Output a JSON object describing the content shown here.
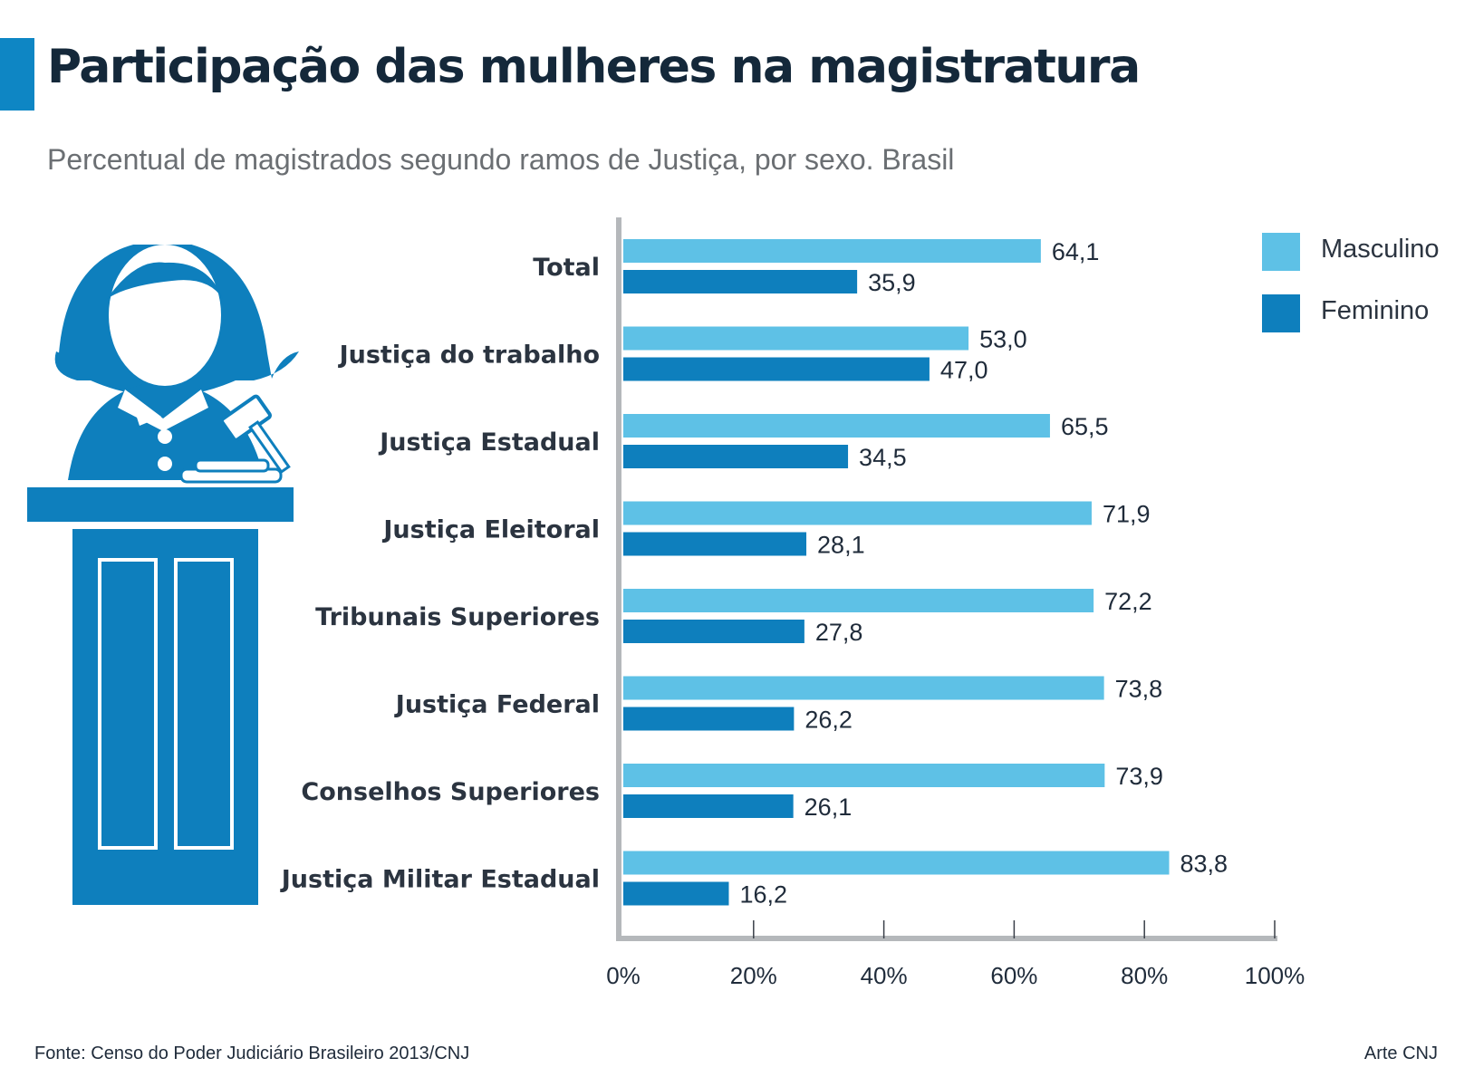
{
  "title": "Participação das mulheres na magistratura",
  "subtitle": "Percentual de magistrados segundo ramos de Justiça, por sexo. Brasil",
  "source": "Fonte: Censo do Poder Judiciário Brasileiro 2013/CNJ",
  "credit": "Arte CNJ",
  "illustration_icon": "judge-at-podium-icon",
  "colors": {
    "masculino": "#5ec1e6",
    "feminino": "#0e7fbd",
    "title_accent": "#0e86c4",
    "axis": "#b5b8bb",
    "illustration": "#0e7fbd"
  },
  "chart_data": {
    "type": "bar",
    "orientation": "horizontal",
    "categories": [
      "Total",
      "Justiça do trabalho",
      "Justiça Estadual",
      "Justiça Eleitoral",
      "Tribunais Superiores",
      "Justiça Federal",
      "Conselhos Superiores",
      "Justiça Militar Estadual"
    ],
    "series": [
      {
        "name": "Masculino",
        "values": [
          64.1,
          53.0,
          65.5,
          71.9,
          72.2,
          73.8,
          73.9,
          83.8
        ]
      },
      {
        "name": "Feminino",
        "values": [
          35.9,
          47.0,
          34.5,
          28.1,
          27.8,
          26.2,
          26.1,
          16.2
        ]
      }
    ],
    "value_labels": {
      "Masculino": [
        "64,1",
        "53,0",
        "65,5",
        "71,9",
        "72,2",
        "73,8",
        "73,9",
        "83,8"
      ],
      "Feminino": [
        "35,9",
        "47,0",
        "34,5",
        "28,1",
        "27,8",
        "26,2",
        "26,1",
        "16,2"
      ]
    },
    "xlim": [
      0,
      100
    ],
    "xticks": [
      0,
      20,
      40,
      60,
      80,
      100
    ],
    "xtick_labels": [
      "0%",
      "20%",
      "40%",
      "60%",
      "80%",
      "100%"
    ],
    "grid": false,
    "legend": "top-right"
  }
}
